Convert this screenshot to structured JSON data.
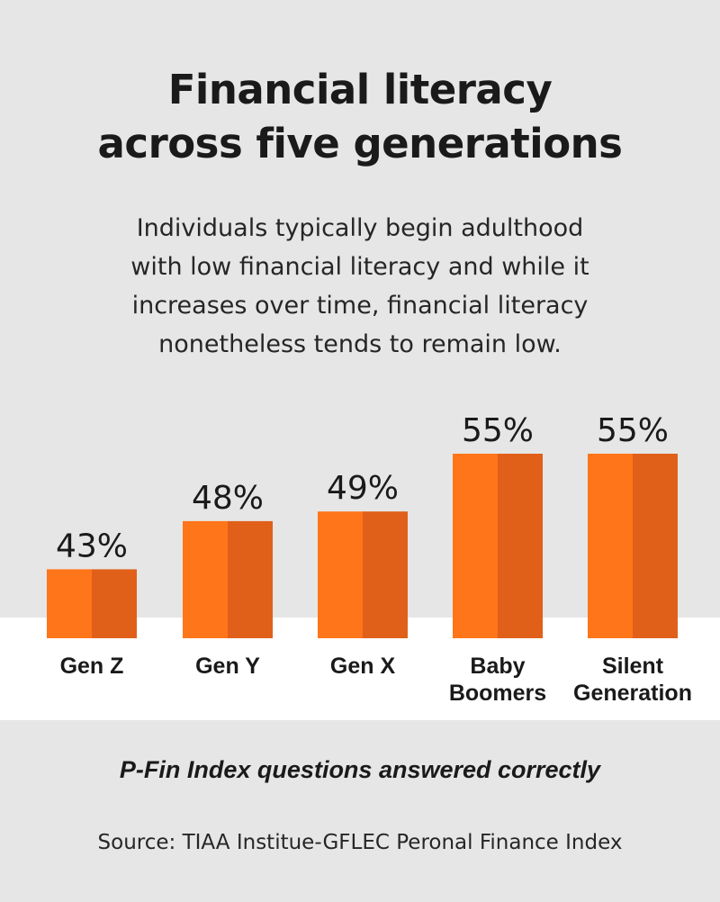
{
  "chart_data": {
    "type": "bar",
    "title": "Financial literacy across five generations",
    "title_lines": [
      "Financial literacy",
      "across five generations"
    ],
    "subtitle": "Individuals typically begin adulthood with low financial literacy and while it increases over time, financial literacy nonetheless tends to remain low.",
    "subtitle_lines": [
      "Individuals typically begin adulthood",
      "with low financial literacy and while it",
      "increases over time, financial literacy",
      "nonetheless tends to remain low."
    ],
    "categories": [
      "Gen Z",
      "Gen Y",
      "Gen X",
      "Baby Boomers",
      "Silent Generation"
    ],
    "category_lines": [
      [
        "Gen Z"
      ],
      [
        "Gen Y"
      ],
      [
        "Gen X"
      ],
      [
        "Baby",
        "Boomers"
      ],
      [
        "Silent",
        "Generation"
      ]
    ],
    "values": [
      43,
      48,
      49,
      55,
      55
    ],
    "value_labels": [
      "43%",
      "48%",
      "49%",
      "55%",
      "55%"
    ],
    "value_unit": "%",
    "ylabel": "P-Fin Index questions answered correctly",
    "xlabel": "",
    "ylim": [
      0,
      100
    ],
    "grid": false,
    "legend": "none",
    "source": "Source: TIAA Institue-GFLEC Peronal Finance Index",
    "colors": {
      "bar_light": "#ff751a",
      "bar_dark": "#e0601a",
      "background": "#e6e6e6",
      "band": "#ffffff",
      "text": "#1a1a1a"
    }
  }
}
